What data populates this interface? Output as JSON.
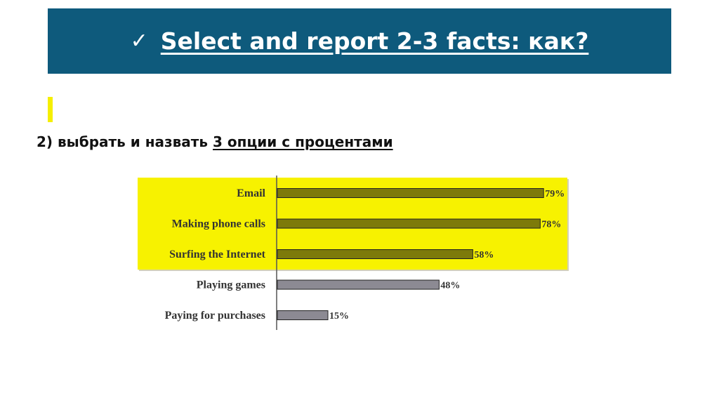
{
  "header": {
    "check_icon": "✓",
    "title": "Select and report 2-3 facts: как?"
  },
  "subtitle": {
    "prefix": "2) выбрать и назвать ",
    "emphasis": "3 опции с процентами"
  },
  "colors": {
    "banner": "#0e5a7c",
    "highlight": "#f7f200",
    "bar_highlight": "#7d7a0a",
    "bar_normal": "#8c8a93"
  },
  "chart_data": {
    "type": "bar",
    "orientation": "horizontal",
    "categories": [
      "Email",
      "Making phone calls",
      "Surfing the Internet",
      "Playing games",
      "Paying for purchases"
    ],
    "values": [
      79,
      78,
      58,
      48,
      15
    ],
    "value_labels": [
      "79%",
      "78%",
      "58%",
      "48%",
      "15%"
    ],
    "highlighted": [
      true,
      true,
      true,
      false,
      false
    ],
    "xlim": [
      0,
      100
    ]
  }
}
